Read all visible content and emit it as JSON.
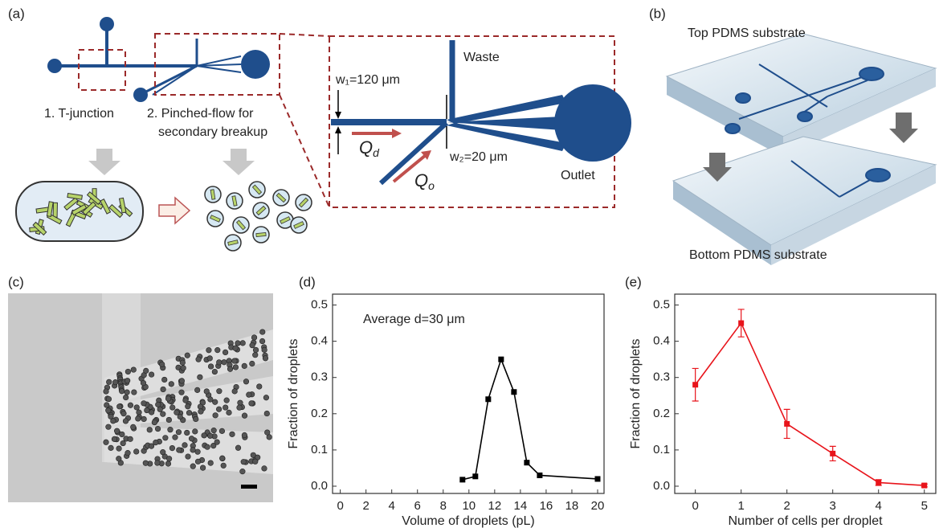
{
  "panels": {
    "a": "(a)",
    "b": "(b)",
    "c": "(c)",
    "d": "(d)",
    "e": "(e)"
  },
  "diagram": {
    "step1": "1. T-junction",
    "step2_line1": "2. Pinched-flow for",
    "step2_line2": "secondary breakup",
    "waste": "Waste",
    "w1": "w₁=120 μm",
    "w2": "w₂=20 μm",
    "outlet": "Outlet",
    "q_d": {
      "main": "Q",
      "sub": "d"
    },
    "q_o": {
      "main": "Q",
      "sub": "o"
    },
    "top_substrate": "Top PDMS substrate",
    "bottom_substrate": "Bottom PDMS substrate"
  },
  "chart_data": [
    {
      "type": "line",
      "xlabel": "Volume of droplets (pL)",
      "ylabel": "Fraction of droplets",
      "annotation": "Average d=30 μm",
      "x": [
        9.5,
        10.5,
        11.5,
        12.5,
        13.5,
        14.5,
        15.5,
        20
      ],
      "series": [
        {
          "color": "#000000",
          "values": [
            0.018,
            0.027,
            0.24,
            0.35,
            0.26,
            0.065,
            0.03,
            0.02
          ]
        }
      ],
      "xlim": [
        -0.6,
        20.5
      ],
      "ylim": [
        -0.02,
        0.53
      ],
      "xticks": [
        0,
        2,
        4,
        6,
        8,
        10,
        12,
        14,
        16,
        18,
        20
      ],
      "yticks": [
        {
          "value": 0,
          "label": "0.0"
        },
        0.1,
        0.2,
        0.3,
        0.4,
        0.5
      ],
      "grid": false
    },
    {
      "type": "line",
      "xlabel": "Number of cells per droplet",
      "ylabel": "Fraction of droplets",
      "x": [
        0,
        1,
        2,
        3,
        4,
        5
      ],
      "series": [
        {
          "color": "#e8141b",
          "values": [
            0.28,
            0.45,
            0.172,
            0.09,
            0.01,
            0.002
          ],
          "errors": [
            0.045,
            0.038,
            0.04,
            0.02,
            0.008,
            0.004
          ]
        }
      ],
      "xlim": [
        -0.45,
        5.25
      ],
      "ylim": [
        -0.02,
        0.53
      ],
      "xticks": [
        0,
        1,
        2,
        3,
        4,
        5
      ],
      "yticks": [
        {
          "value": 0,
          "label": "0.0"
        },
        0.1,
        0.2,
        0.3,
        0.4,
        0.5
      ],
      "grid": false
    }
  ]
}
